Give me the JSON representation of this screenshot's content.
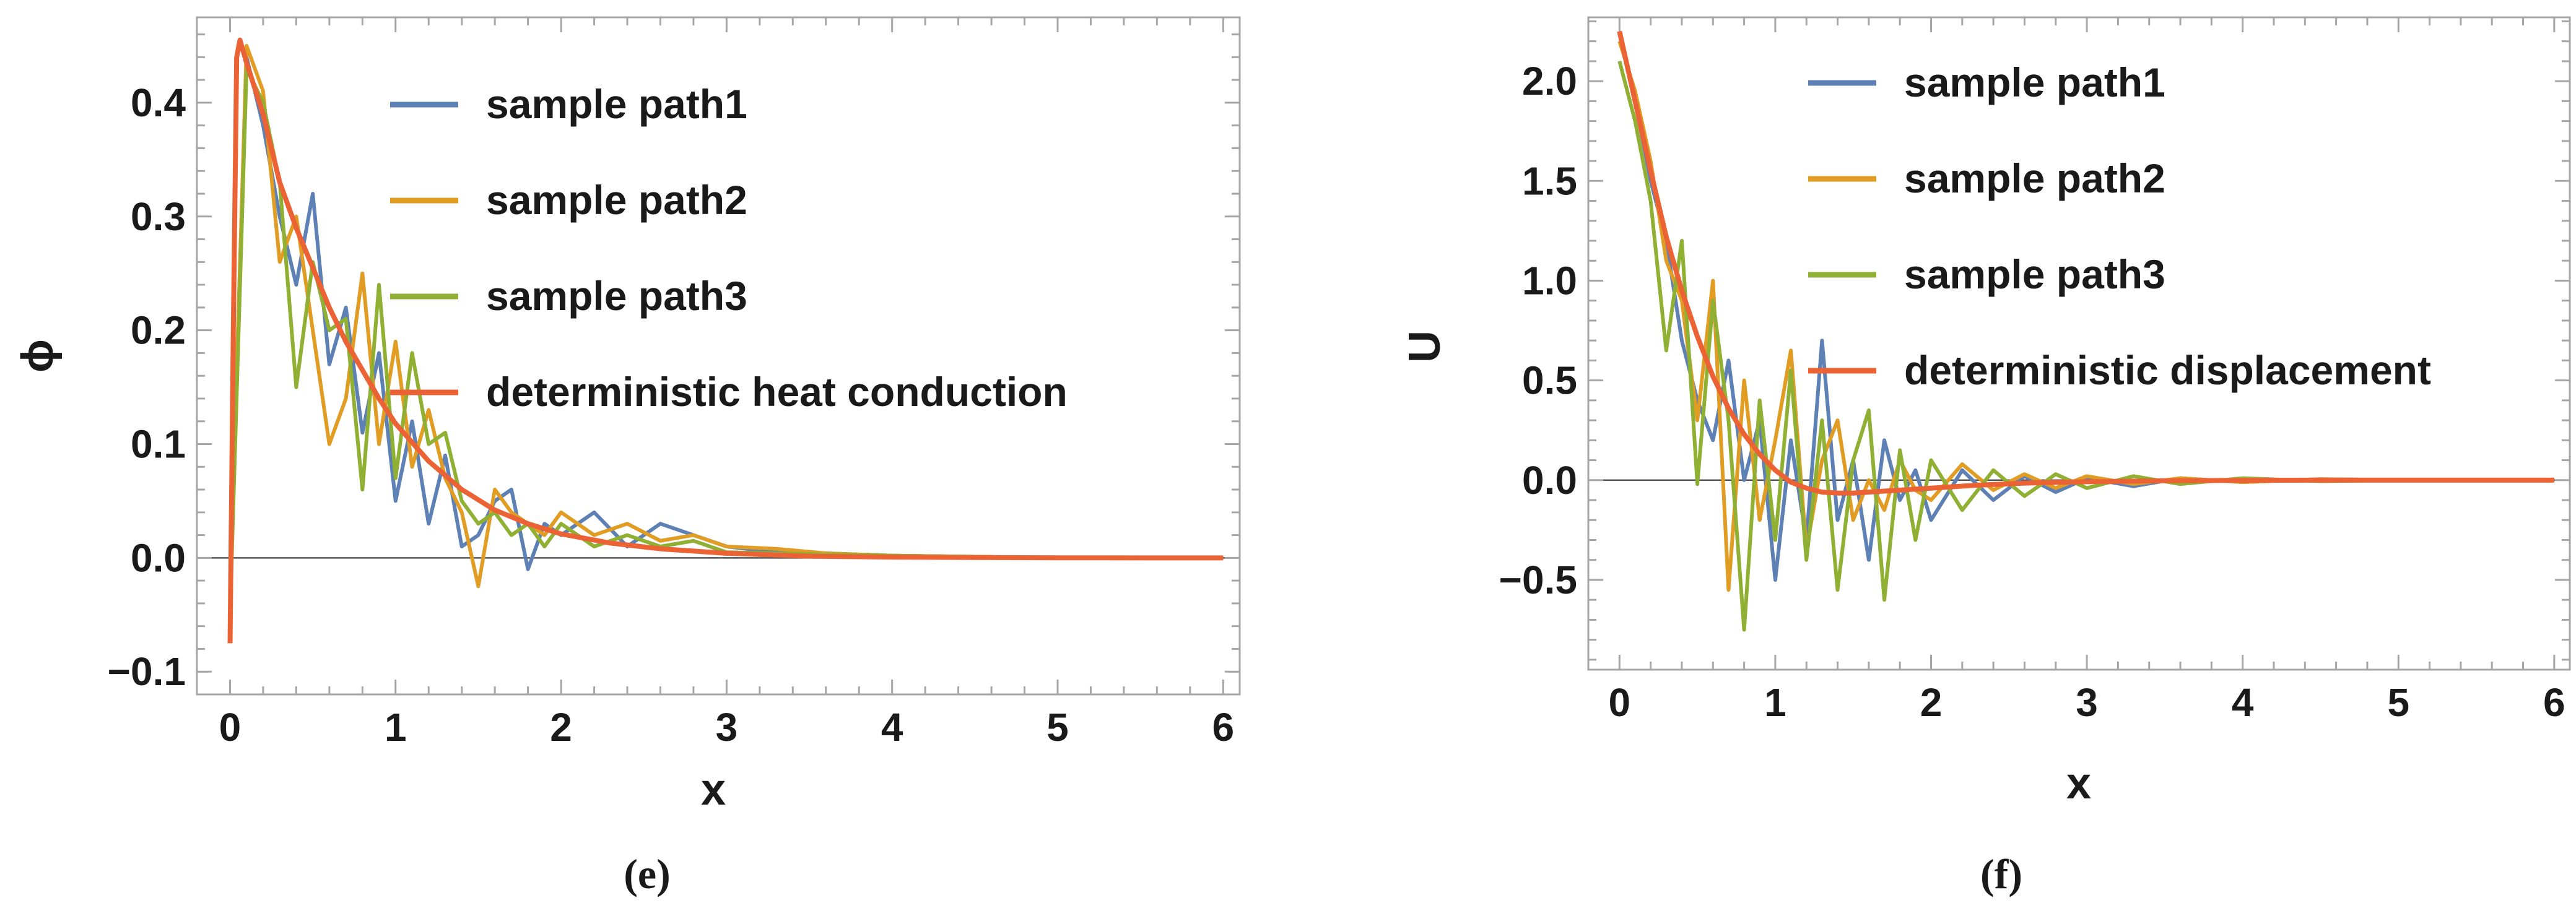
{
  "chart_data": [
    {
      "type": "line",
      "panel_label": "(e)",
      "xlabel": "x",
      "ylabel": "ϕ",
      "xlim": [
        -0.2,
        6.1
      ],
      "ylim": [
        -0.12,
        0.475
      ],
      "xticks": [
        0,
        1,
        2,
        3,
        4,
        5,
        6
      ],
      "xtick_labels": [
        "0",
        "1",
        "2",
        "3",
        "4",
        "5",
        "6"
      ],
      "yticks": [
        -0.1,
        0.0,
        0.1,
        0.2,
        0.3,
        0.4
      ],
      "ytick_labels": [
        "−0.1",
        "0.0",
        "0.1",
        "0.2",
        "0.3",
        "0.4"
      ],
      "grid": false,
      "legend_position": "top-right",
      "series": [
        {
          "name": "sample path1",
          "color": "#5E81B5",
          "x": [
            0.0,
            0.1,
            0.2,
            0.3,
            0.4,
            0.5,
            0.6,
            0.7,
            0.8,
            0.9,
            1.0,
            1.1,
            1.2,
            1.3,
            1.4,
            1.5,
            1.6,
            1.7,
            1.8,
            1.9,
            2.0,
            2.2,
            2.4,
            2.6,
            2.8,
            3.0,
            3.3,
            3.6,
            4.0,
            4.5,
            5.0,
            5.5,
            6.0
          ],
          "y": [
            -0.02,
            0.44,
            0.38,
            0.3,
            0.24,
            0.32,
            0.17,
            0.22,
            0.11,
            0.18,
            0.05,
            0.12,
            0.03,
            0.09,
            0.01,
            0.02,
            0.05,
            0.06,
            -0.01,
            0.03,
            0.02,
            0.04,
            0.01,
            0.03,
            0.02,
            0.01,
            0.005,
            0.004,
            0.002,
            0.001,
            0.0,
            0.0,
            0.0
          ]
        },
        {
          "name": "sample path2",
          "color": "#E19C24",
          "x": [
            0.0,
            0.1,
            0.2,
            0.3,
            0.4,
            0.5,
            0.6,
            0.7,
            0.8,
            0.9,
            1.0,
            1.1,
            1.2,
            1.3,
            1.4,
            1.5,
            1.6,
            1.7,
            1.8,
            1.9,
            2.0,
            2.2,
            2.4,
            2.6,
            2.8,
            3.0,
            3.3,
            3.6,
            4.0,
            4.5,
            5.0,
            5.5,
            6.0
          ],
          "y": [
            -0.03,
            0.45,
            0.41,
            0.26,
            0.3,
            0.2,
            0.1,
            0.14,
            0.25,
            0.1,
            0.19,
            0.08,
            0.13,
            0.07,
            0.04,
            -0.025,
            0.06,
            0.04,
            0.03,
            0.02,
            0.04,
            0.02,
            0.03,
            0.015,
            0.02,
            0.01,
            0.008,
            0.004,
            0.002,
            0.001,
            0.0,
            0.0,
            0.0
          ]
        },
        {
          "name": "sample path3",
          "color": "#8FB032",
          "x": [
            0.0,
            0.1,
            0.2,
            0.3,
            0.4,
            0.5,
            0.6,
            0.7,
            0.8,
            0.9,
            1.0,
            1.1,
            1.2,
            1.3,
            1.4,
            1.5,
            1.6,
            1.7,
            1.8,
            1.9,
            2.0,
            2.2,
            2.4,
            2.6,
            2.8,
            3.0,
            3.3,
            3.6,
            4.0,
            4.5,
            5.0,
            5.5,
            6.0
          ],
          "y": [
            -0.05,
            0.43,
            0.4,
            0.33,
            0.15,
            0.26,
            0.2,
            0.21,
            0.06,
            0.24,
            0.07,
            0.18,
            0.1,
            0.11,
            0.05,
            0.03,
            0.04,
            0.02,
            0.03,
            0.01,
            0.03,
            0.01,
            0.02,
            0.01,
            0.015,
            0.005,
            0.004,
            0.003,
            0.002,
            0.001,
            0.0,
            0.0,
            0.0
          ]
        },
        {
          "name": "deterministic heat conduction",
          "color": "#EB6235",
          "x": [
            0.0,
            0.02,
            0.04,
            0.06,
            0.1,
            0.2,
            0.3,
            0.4,
            0.5,
            0.6,
            0.7,
            0.8,
            0.9,
            1.0,
            1.2,
            1.4,
            1.6,
            1.8,
            2.0,
            2.3,
            2.6,
            3.0,
            3.5,
            4.0,
            4.5,
            5.0,
            5.5,
            6.0
          ],
          "y": [
            -0.075,
            0.2,
            0.44,
            0.455,
            0.435,
            0.39,
            0.33,
            0.29,
            0.255,
            0.22,
            0.19,
            0.165,
            0.14,
            0.118,
            0.085,
            0.06,
            0.042,
            0.03,
            0.021,
            0.013,
            0.008,
            0.004,
            0.0015,
            0.0007,
            0.0003,
            0.0001,
            0.0,
            0.0
          ]
        }
      ]
    },
    {
      "type": "line",
      "panel_label": "(f)",
      "xlabel": "x",
      "ylabel": "U",
      "xlim": [
        -0.2,
        6.1
      ],
      "ylim": [
        -0.95,
        2.32
      ],
      "xticks": [
        0,
        1,
        2,
        3,
        4,
        5,
        6
      ],
      "xtick_labels": [
        "0",
        "1",
        "2",
        "3",
        "4",
        "5",
        "6"
      ],
      "yticks": [
        -0.5,
        0.0,
        0.5,
        1.0,
        1.5,
        2.0
      ],
      "ytick_labels": [
        "−0.5",
        "0.0",
        "0.5",
        "1.0",
        "1.5",
        "2.0"
      ],
      "grid": false,
      "legend_position": "top-right",
      "series": [
        {
          "name": "sample path1",
          "color": "#5E81B5",
          "x": [
            0.0,
            0.1,
            0.2,
            0.3,
            0.4,
            0.5,
            0.6,
            0.7,
            0.8,
            0.9,
            1.0,
            1.1,
            1.2,
            1.3,
            1.4,
            1.5,
            1.6,
            1.7,
            1.8,
            1.9,
            2.0,
            2.2,
            2.4,
            2.6,
            2.8,
            3.0,
            3.3,
            3.6,
            4.0,
            4.5,
            5.0,
            5.5,
            6.0
          ],
          "y": [
            2.25,
            1.9,
            1.5,
            1.2,
            0.7,
            0.4,
            0.2,
            0.6,
            0.0,
            0.3,
            -0.5,
            0.2,
            -0.3,
            0.7,
            -0.2,
            0.1,
            -0.4,
            0.2,
            -0.1,
            0.05,
            -0.2,
            0.05,
            -0.1,
            0.02,
            -0.06,
            0.01,
            -0.03,
            0.01,
            -0.01,
            0.005,
            0.0,
            0.0,
            0.0
          ]
        },
        {
          "name": "sample path2",
          "color": "#E19C24",
          "x": [
            0.0,
            0.1,
            0.2,
            0.3,
            0.4,
            0.5,
            0.6,
            0.7,
            0.8,
            0.9,
            1.0,
            1.1,
            1.2,
            1.3,
            1.4,
            1.5,
            1.6,
            1.7,
            1.8,
            1.9,
            2.0,
            2.2,
            2.4,
            2.6,
            2.8,
            3.0,
            3.3,
            3.6,
            4.0,
            4.5,
            5.0,
            5.5,
            6.0
          ],
          "y": [
            2.2,
            1.95,
            1.6,
            1.1,
            0.9,
            0.3,
            1.0,
            -0.55,
            0.5,
            -0.2,
            0.2,
            0.65,
            -0.35,
            0.1,
            0.3,
            -0.2,
            0.0,
            -0.15,
            0.1,
            -0.05,
            -0.1,
            0.08,
            -0.05,
            0.03,
            -0.04,
            0.02,
            -0.02,
            0.01,
            -0.01,
            0.005,
            0.0,
            0.0,
            0.0
          ]
        },
        {
          "name": "sample path3",
          "color": "#8FB032",
          "x": [
            0.0,
            0.1,
            0.2,
            0.3,
            0.4,
            0.5,
            0.6,
            0.7,
            0.8,
            0.9,
            1.0,
            1.1,
            1.2,
            1.3,
            1.4,
            1.5,
            1.6,
            1.7,
            1.8,
            1.9,
            2.0,
            2.2,
            2.4,
            2.6,
            2.8,
            3.0,
            3.3,
            3.6,
            4.0,
            4.5,
            5.0,
            5.5,
            6.0
          ],
          "y": [
            2.1,
            1.8,
            1.4,
            0.65,
            1.2,
            -0.02,
            0.9,
            0.3,
            -0.75,
            0.4,
            -0.3,
            0.55,
            -0.4,
            0.3,
            -0.55,
            0.1,
            0.35,
            -0.6,
            0.15,
            -0.3,
            0.1,
            -0.15,
            0.05,
            -0.08,
            0.03,
            -0.04,
            0.02,
            -0.02,
            0.01,
            -0.005,
            0.0,
            0.0,
            0.0
          ]
        },
        {
          "name": "deterministic displacement",
          "color": "#EB6235",
          "x": [
            0.0,
            0.1,
            0.2,
            0.3,
            0.4,
            0.5,
            0.6,
            0.7,
            0.8,
            0.9,
            1.0,
            1.1,
            1.2,
            1.3,
            1.4,
            1.5,
            1.6,
            1.8,
            2.0,
            2.3,
            2.6,
            3.0,
            3.5,
            4.0,
            4.5,
            5.0,
            5.5,
            6.0
          ],
          "y": [
            2.25,
            1.9,
            1.55,
            1.22,
            0.95,
            0.72,
            0.52,
            0.36,
            0.23,
            0.13,
            0.05,
            -0.01,
            -0.04,
            -0.06,
            -0.065,
            -0.065,
            -0.06,
            -0.05,
            -0.04,
            -0.025,
            -0.015,
            -0.008,
            -0.003,
            -0.001,
            0.0,
            0.0,
            0.0,
            0.0
          ]
        }
      ]
    }
  ]
}
